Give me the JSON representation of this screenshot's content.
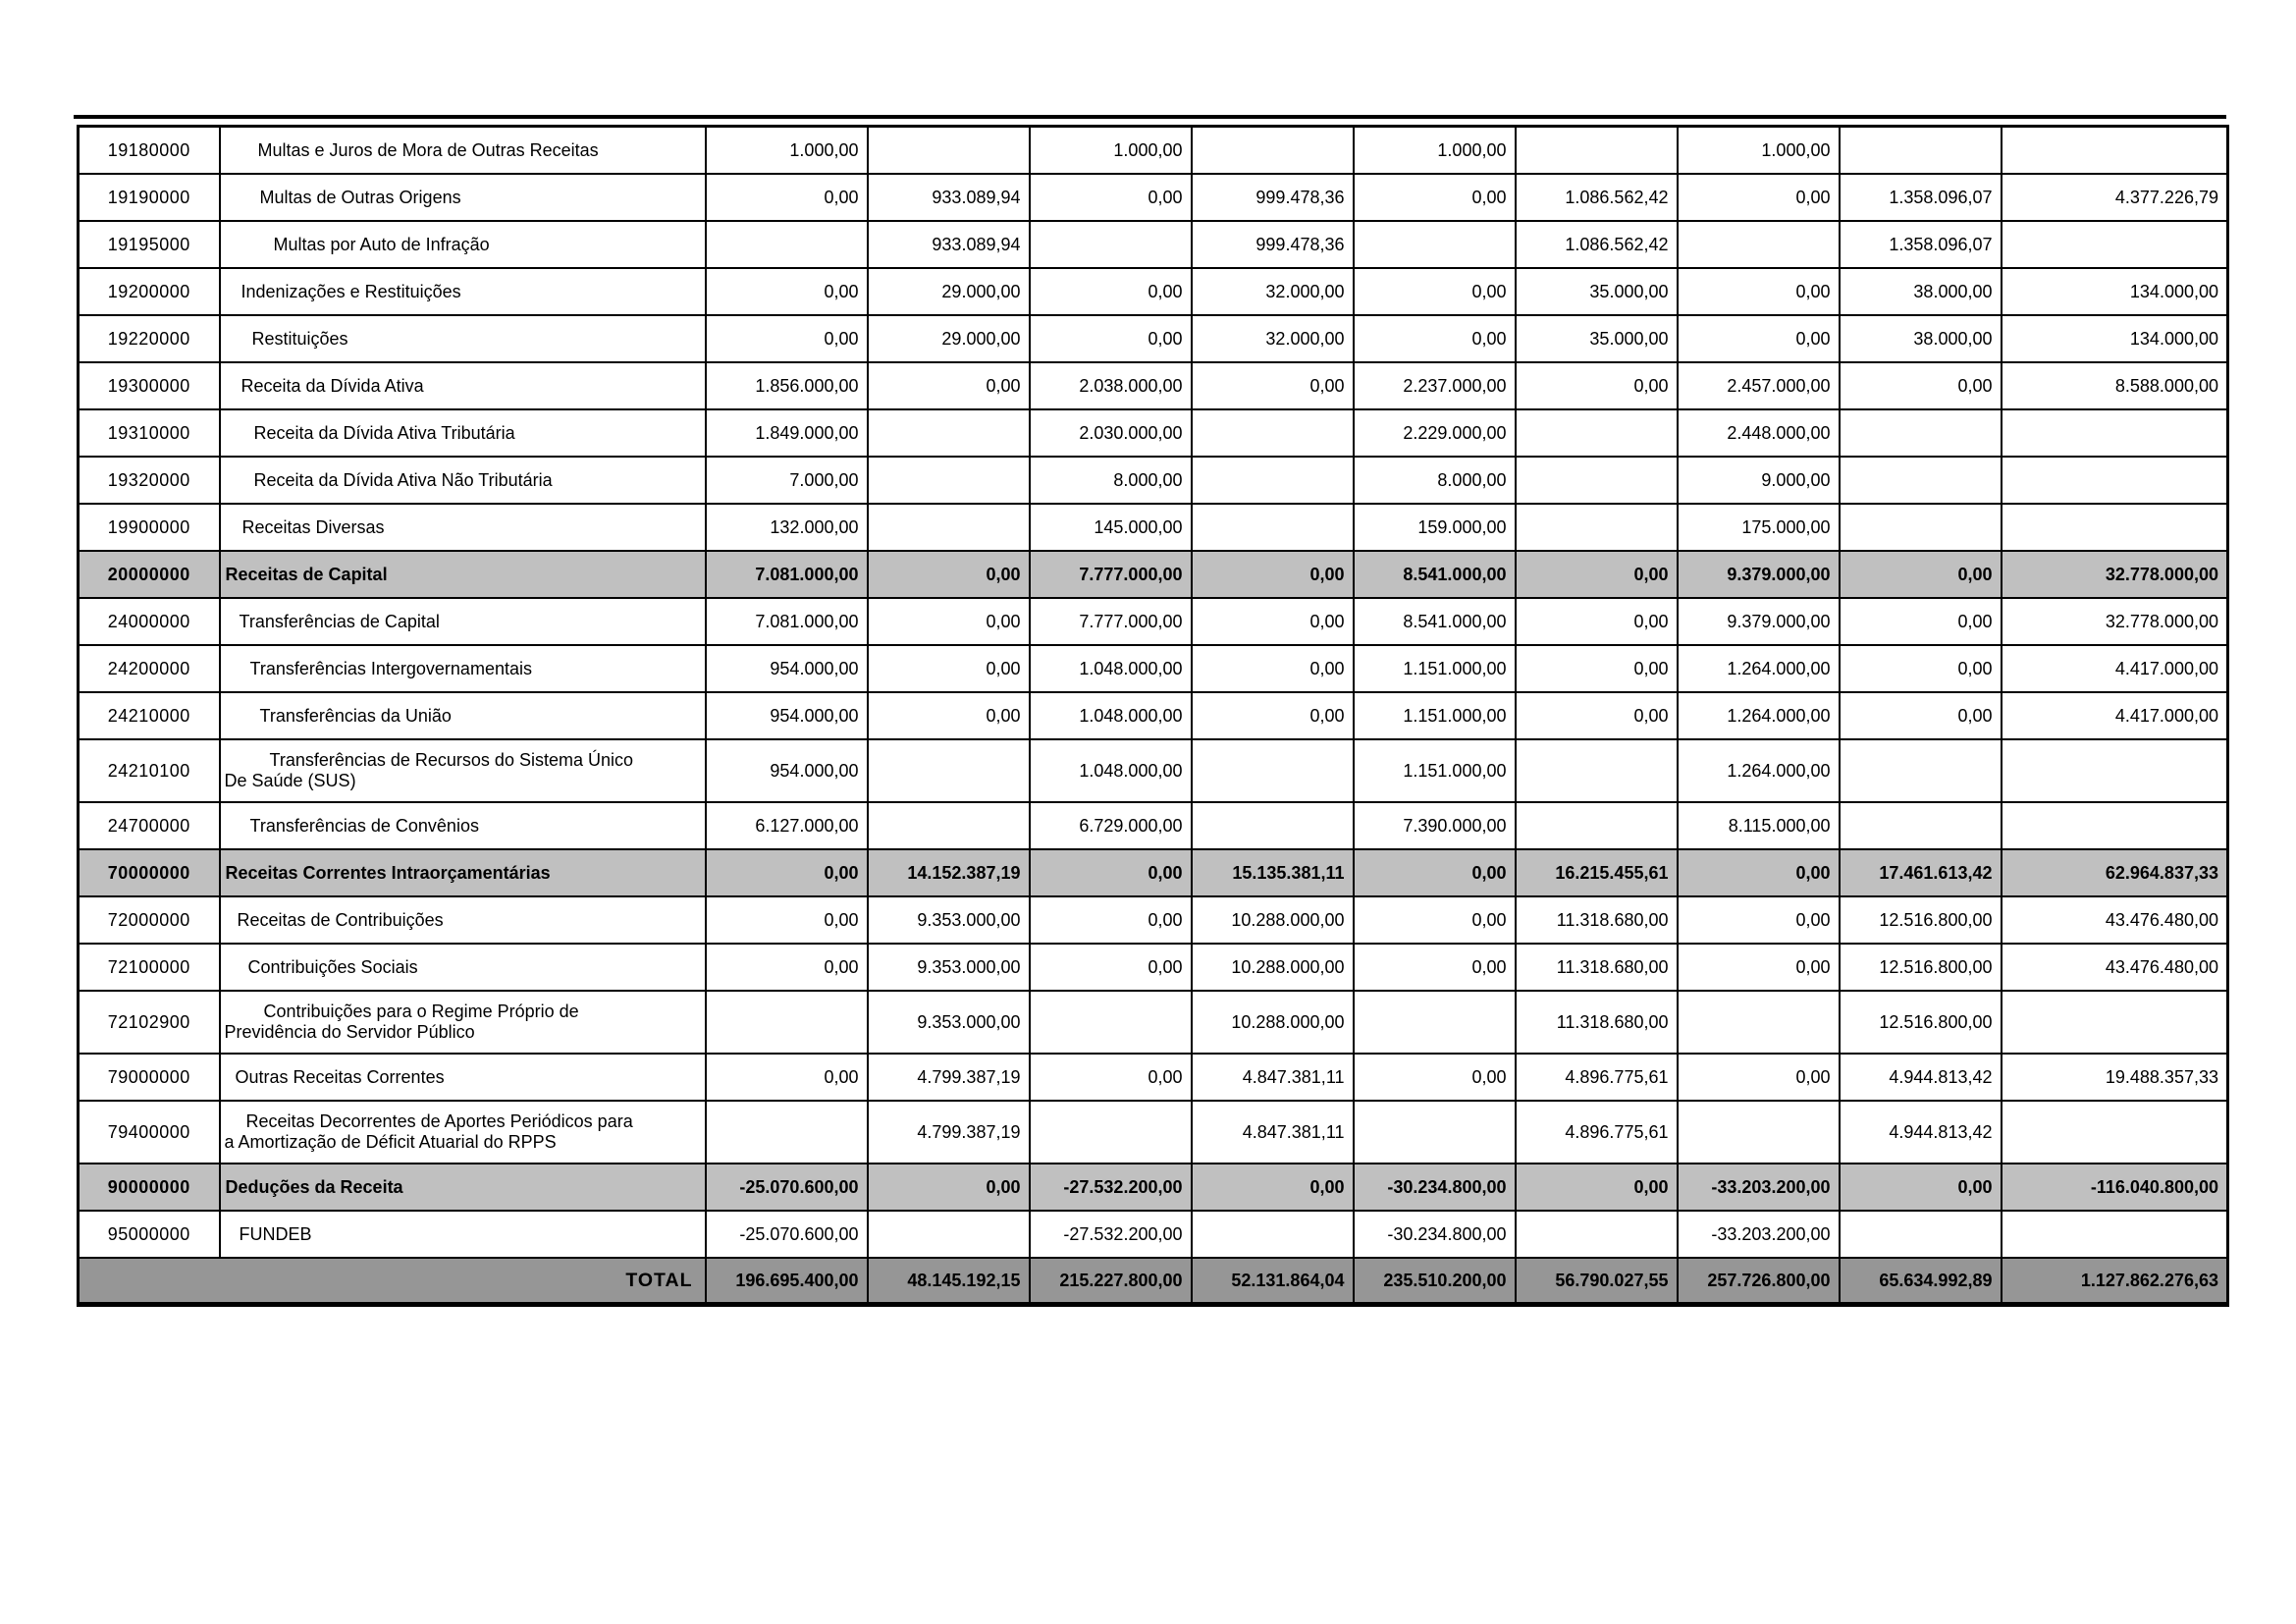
{
  "colors": {
    "section_row_bg": "#c0c0c0",
    "total_row_bg": "#969696",
    "grid_border": "#000000",
    "page_bg": "#ffffff"
  },
  "table": {
    "total_label": "TOTAL",
    "rows": [
      {
        "code": "19180000",
        "description": "Multas e Juros de Mora de Outras Receitas",
        "indent": 38,
        "style": "item",
        "values": [
          "1.000,00",
          "",
          "1.000,00",
          "",
          "1.000,00",
          "",
          "1.000,00",
          "",
          ""
        ]
      },
      {
        "code": "19190000",
        "description": "Multas de Outras Origens",
        "indent": 40,
        "style": "item",
        "values": [
          "0,00",
          "933.089,94",
          "0,00",
          "999.478,36",
          "0,00",
          "1.086.562,42",
          "0,00",
          "1.358.096,07",
          "4.377.226,79"
        ]
      },
      {
        "code": "19195000",
        "description": "Multas por Auto de Infração",
        "indent": 54,
        "style": "item",
        "values": [
          "",
          "933.089,94",
          "",
          "999.478,36",
          "",
          "1.086.562,42",
          "",
          "1.358.096,07",
          ""
        ]
      },
      {
        "code": "19200000",
        "description": "Indenizações e Restituições",
        "indent": 21,
        "style": "item",
        "values": [
          "0,00",
          "29.000,00",
          "0,00",
          "32.000,00",
          "0,00",
          "35.000,00",
          "0,00",
          "38.000,00",
          "134.000,00"
        ]
      },
      {
        "code": "19220000",
        "description": "Restituições",
        "indent": 32,
        "style": "item",
        "values": [
          "0,00",
          "29.000,00",
          "0,00",
          "32.000,00",
          "0,00",
          "35.000,00",
          "0,00",
          "38.000,00",
          "134.000,00"
        ]
      },
      {
        "code": "19300000",
        "description": "Receita da Dívida Ativa",
        "indent": 21,
        "style": "item",
        "values": [
          "1.856.000,00",
          "0,00",
          "2.038.000,00",
          "0,00",
          "2.237.000,00",
          "0,00",
          "2.457.000,00",
          "0,00",
          "8.588.000,00"
        ]
      },
      {
        "code": "19310000",
        "description": "Receita da Dívida Ativa Tributária",
        "indent": 34,
        "style": "item",
        "values": [
          "1.849.000,00",
          "",
          "2.030.000,00",
          "",
          "2.229.000,00",
          "",
          "2.448.000,00",
          "",
          ""
        ]
      },
      {
        "code": "19320000",
        "description": "Receita da Dívida Ativa Não Tributária",
        "indent": 34,
        "style": "item",
        "values": [
          "7.000,00",
          "",
          "8.000,00",
          "",
          "8.000,00",
          "",
          "9.000,00",
          "",
          ""
        ]
      },
      {
        "code": "19900000",
        "description": "Receitas Diversas",
        "indent": 22,
        "style": "item",
        "values": [
          "132.000,00",
          "",
          "145.000,00",
          "",
          "159.000,00",
          "",
          "175.000,00",
          "",
          ""
        ]
      },
      {
        "code": "20000000",
        "description": "Receitas de Capital",
        "indent": 5,
        "style": "section",
        "values": [
          "7.081.000,00",
          "0,00",
          "7.777.000,00",
          "0,00",
          "8.541.000,00",
          "0,00",
          "9.379.000,00",
          "0,00",
          "32.778.000,00"
        ]
      },
      {
        "code": "24000000",
        "description": "Transferências de Capital",
        "indent": 19,
        "style": "item",
        "values": [
          "7.081.000,00",
          "0,00",
          "7.777.000,00",
          "0,00",
          "8.541.000,00",
          "0,00",
          "9.379.000,00",
          "0,00",
          "32.778.000,00"
        ]
      },
      {
        "code": "24200000",
        "description": "Transferências Intergovernamentais",
        "indent": 30,
        "style": "item",
        "values": [
          "954.000,00",
          "0,00",
          "1.048.000,00",
          "0,00",
          "1.151.000,00",
          "0,00",
          "1.264.000,00",
          "0,00",
          "4.417.000,00"
        ]
      },
      {
        "code": "24210000",
        "description": "Transferências da União",
        "indent": 40,
        "style": "item",
        "values": [
          "954.000,00",
          "0,00",
          "1.048.000,00",
          "0,00",
          "1.151.000,00",
          "0,00",
          "1.264.000,00",
          "0,00",
          "4.417.000,00"
        ]
      },
      {
        "code": "24210100",
        "description_lines": [
          "Transferências de Recursos do Sistema Único",
          "De Saúde (SUS)"
        ],
        "indent": 50,
        "style": "item",
        "values": [
          "954.000,00",
          "",
          "1.048.000,00",
          "",
          "1.151.000,00",
          "",
          "1.264.000,00",
          "",
          ""
        ]
      },
      {
        "code": "24700000",
        "description": "Transferências de Convênios",
        "indent": 30,
        "style": "item",
        "values": [
          "6.127.000,00",
          "",
          "6.729.000,00",
          "",
          "7.390.000,00",
          "",
          "8.115.000,00",
          "",
          ""
        ]
      },
      {
        "code": "70000000",
        "description": "Receitas Correntes Intraorçamentárias",
        "indent": 5,
        "style": "section",
        "values": [
          "0,00",
          "14.152.387,19",
          "0,00",
          "15.135.381,11",
          "0,00",
          "16.215.455,61",
          "0,00",
          "17.461.613,42",
          "62.964.837,33"
        ]
      },
      {
        "code": "72000000",
        "description": "Receitas de Contribuições",
        "indent": 17,
        "style": "item",
        "values": [
          "0,00",
          "9.353.000,00",
          "0,00",
          "10.288.000,00",
          "0,00",
          "11.318.680,00",
          "0,00",
          "12.516.800,00",
          "43.476.480,00"
        ]
      },
      {
        "code": "72100000",
        "description": "Contribuições Sociais",
        "indent": 28,
        "style": "item",
        "values": [
          "0,00",
          "9.353.000,00",
          "0,00",
          "10.288.000,00",
          "0,00",
          "11.318.680,00",
          "0,00",
          "12.516.800,00",
          "43.476.480,00"
        ]
      },
      {
        "code": "72102900",
        "description_lines": [
          "Contribuições para o Regime Próprio de",
          "Previdência do Servidor Público"
        ],
        "indent": 44,
        "style": "item",
        "values": [
          "",
          "9.353.000,00",
          "",
          "10.288.000,00",
          "",
          "11.318.680,00",
          "",
          "12.516.800,00",
          ""
        ]
      },
      {
        "code": "79000000",
        "description": "Outras Receitas Correntes",
        "indent": 15,
        "style": "item",
        "values": [
          "0,00",
          "4.799.387,19",
          "0,00",
          "4.847.381,11",
          "0,00",
          "4.896.775,61",
          "0,00",
          "4.944.813,42",
          "19.488.357,33"
        ]
      },
      {
        "code": "79400000",
        "description_lines": [
          "Receitas Decorrentes de Aportes Periódicos para",
          "a Amortização de Déficit Atuarial do RPPS"
        ],
        "indent": 26,
        "style": "item",
        "values": [
          "",
          "4.799.387,19",
          "",
          "4.847.381,11",
          "",
          "4.896.775,61",
          "",
          "4.944.813,42",
          ""
        ]
      },
      {
        "code": "90000000",
        "description": "Deduções da Receita",
        "indent": 5,
        "style": "section",
        "values": [
          "-25.070.600,00",
          "0,00",
          "-27.532.200,00",
          "0,00",
          "-30.234.800,00",
          "0,00",
          "-33.203.200,00",
          "0,00",
          "-116.040.800,00"
        ]
      },
      {
        "code": "95000000",
        "description": "FUNDEB",
        "indent": 19,
        "style": "item",
        "values": [
          "-25.070.600,00",
          "",
          "-27.532.200,00",
          "",
          "-30.234.800,00",
          "",
          "-33.203.200,00",
          "",
          ""
        ]
      },
      {
        "style": "total",
        "values": [
          "196.695.400,00",
          "48.145.192,15",
          "215.227.800,00",
          "52.131.864,04",
          "235.510.200,00",
          "56.790.027,55",
          "257.726.800,00",
          "65.634.992,89",
          "1.127.862.276,63"
        ]
      }
    ]
  }
}
